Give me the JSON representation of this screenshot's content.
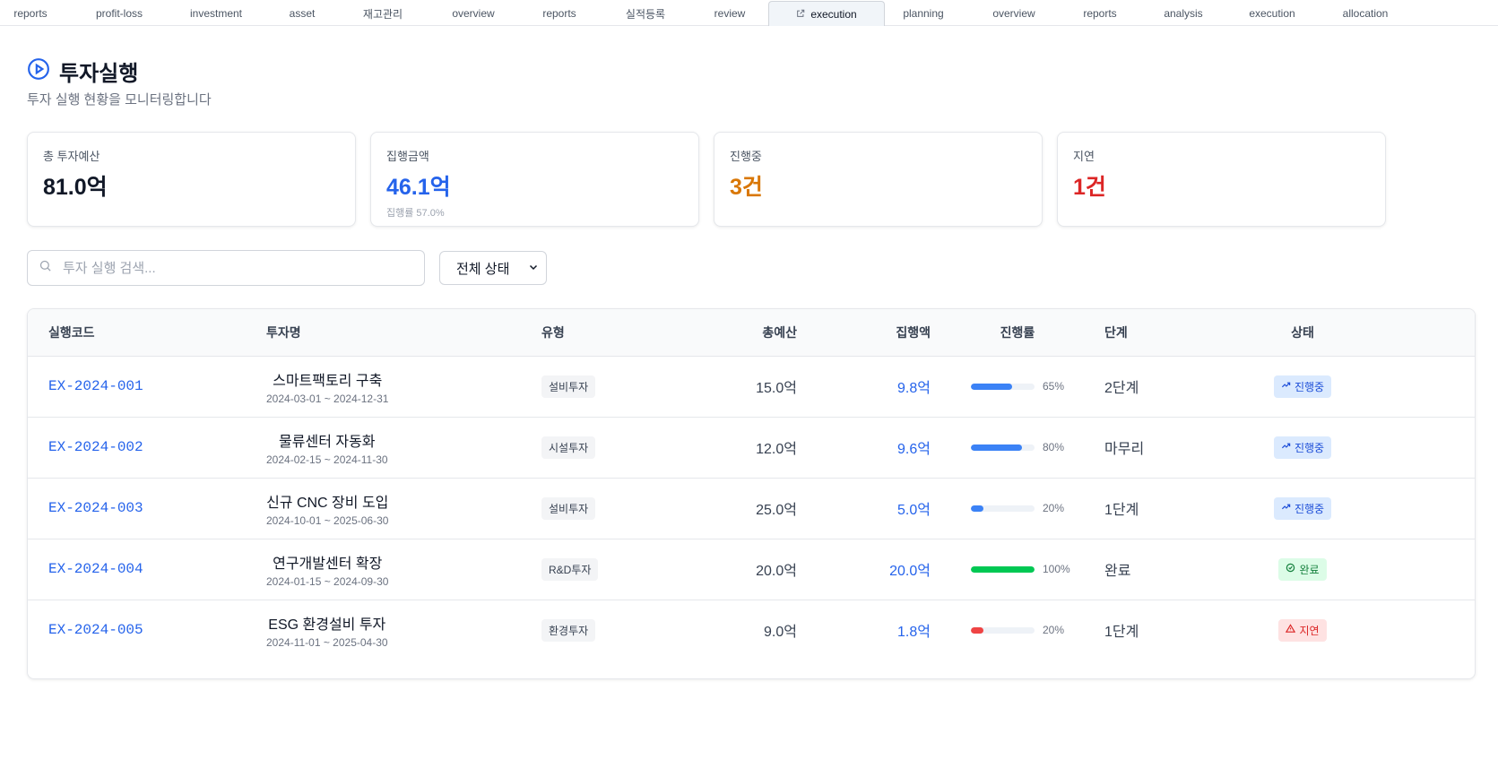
{
  "tabs": [
    {
      "label": "reports",
      "active": false
    },
    {
      "label": "profit-loss",
      "active": false
    },
    {
      "label": "investment",
      "active": false
    },
    {
      "label": "asset",
      "active": false
    },
    {
      "label": "재고관리",
      "active": false
    },
    {
      "label": "overview",
      "active": false
    },
    {
      "label": "reports",
      "active": false
    },
    {
      "label": "실적등록",
      "active": false
    },
    {
      "label": "review",
      "active": false
    },
    {
      "label": "execution",
      "active": true,
      "icon": "external-link-icon"
    },
    {
      "label": "planning",
      "active": false
    },
    {
      "label": "overview",
      "active": false
    },
    {
      "label": "reports",
      "active": false
    },
    {
      "label": "analysis",
      "active": false
    },
    {
      "label": "execution",
      "active": false
    },
    {
      "label": "allocation",
      "active": false
    }
  ],
  "header": {
    "icon": "play-circle-icon",
    "title": "투자실행",
    "subtitle": "투자 실행 현황을 모니터링합니다"
  },
  "stats": [
    {
      "label": "총 투자예산",
      "value": "81.0억",
      "sub": "",
      "color": "#111827"
    },
    {
      "label": "집행금액",
      "value": "46.1억",
      "sub": "집행률 57.0%",
      "color": "#2563eb"
    },
    {
      "label": "진행중",
      "value": "3건",
      "sub": "",
      "color": "#d97706"
    },
    {
      "label": "지연",
      "value": "1건",
      "sub": "",
      "color": "#dc2626"
    }
  ],
  "search": {
    "placeholder": "투자 실행 검색...",
    "value": ""
  },
  "filter": {
    "selected": "전체 상태"
  },
  "table": {
    "columns": [
      "실행코드",
      "투자명",
      "유형",
      "총예산",
      "집행액",
      "진행률",
      "단계",
      "상태"
    ],
    "rows": [
      {
        "code": "EX-2024-001",
        "name": "스마트팩토리 구축",
        "period": "2024-03-01 ~ 2024-12-31",
        "type": "설비투자",
        "budget": "15.0억",
        "spent": "9.8억",
        "progress": 65,
        "progress_label": "65%",
        "bar_color": "#3b82f6",
        "stage": "2단계",
        "status": "진행중",
        "status_kind": "progress"
      },
      {
        "code": "EX-2024-002",
        "name": "물류센터 자동화",
        "period": "2024-02-15 ~ 2024-11-30",
        "type": "시설투자",
        "budget": "12.0억",
        "spent": "9.6억",
        "progress": 80,
        "progress_label": "80%",
        "bar_color": "#3b82f6",
        "stage": "마무리",
        "status": "진행중",
        "status_kind": "progress"
      },
      {
        "code": "EX-2024-003",
        "name": "신규 CNC 장비 도입",
        "period": "2024-10-01 ~ 2025-06-30",
        "type": "설비투자",
        "budget": "25.0억",
        "spent": "5.0억",
        "progress": 20,
        "progress_label": "20%",
        "bar_color": "#3b82f6",
        "stage": "1단계",
        "status": "진행중",
        "status_kind": "progress"
      },
      {
        "code": "EX-2024-004",
        "name": "연구개발센터 확장",
        "period": "2024-01-15 ~ 2024-09-30",
        "type": "R&D투자",
        "budget": "20.0억",
        "spent": "20.0억",
        "progress": 100,
        "progress_label": "100%",
        "bar_color": "#00c853",
        "stage": "완료",
        "status": "완료",
        "status_kind": "done"
      },
      {
        "code": "EX-2024-005",
        "name": "ESG 환경설비 투자",
        "period": "2024-11-01 ~ 2025-04-30",
        "type": "환경투자",
        "budget": "9.0억",
        "spent": "1.8억",
        "progress": 20,
        "progress_label": "20%",
        "bar_color": "#ef4444",
        "stage": "1단계",
        "status": "지연",
        "status_kind": "delayed"
      }
    ]
  }
}
